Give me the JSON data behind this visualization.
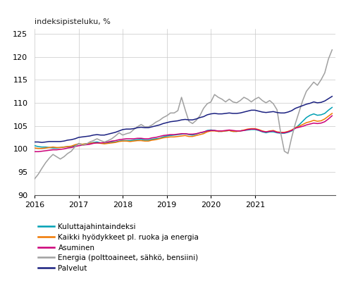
{
  "title": "indeksipisteluku, %",
  "ylim": [
    90,
    126
  ],
  "yticks": [
    90,
    95,
    100,
    105,
    110,
    115,
    120,
    125
  ],
  "background_color": "#ffffff",
  "grid_color": "#c8c8c8",
  "legend": [
    {
      "label": "Kuluttajahintaindeksi",
      "color": "#00a0b4"
    },
    {
      "label": "Kaikki hyödykkeet pl. ruoka ja energia",
      "color": "#f07800"
    },
    {
      "label": "Asuminen",
      "color": "#cc0078"
    },
    {
      "label": "Energia (polttoaineet, sähkö, bensiini)",
      "color": "#a0a0a0"
    },
    {
      "label": "Palvelut",
      "color": "#1a2080"
    }
  ],
  "x_labels": [
    "2016",
    "2017",
    "2018",
    "2019",
    "2020",
    "2021"
  ],
  "kuluttajahintaindeksi": [
    100.7,
    100.5,
    100.4,
    100.4,
    100.3,
    100.2,
    100.2,
    100.3,
    100.4,
    100.5,
    100.5,
    100.7,
    101.1,
    101.0,
    101.1,
    101.2,
    101.4,
    101.5,
    101.3,
    101.2,
    101.3,
    101.5,
    101.5,
    101.7,
    101.8,
    101.8,
    101.8,
    101.9,
    102.0,
    102.1,
    101.9,
    101.9,
    102.1,
    102.2,
    102.3,
    102.6,
    102.8,
    102.9,
    103.0,
    103.1,
    103.2,
    103.3,
    103.1,
    103.0,
    103.2,
    103.5,
    103.6,
    104.0,
    104.1,
    104.0,
    103.8,
    103.8,
    103.9,
    104.0,
    103.8,
    103.8,
    103.9,
    104.0,
    104.1,
    104.2,
    104.2,
    104.0,
    103.7,
    103.5,
    103.7,
    103.7,
    103.5,
    103.4,
    103.4,
    103.6,
    103.9,
    104.5,
    105.2,
    106.0,
    106.8,
    107.3,
    107.6,
    107.3,
    107.4,
    107.7,
    108.4,
    109.0
  ],
  "kaikki_pl_ruoka_energia": [
    100.2,
    100.1,
    100.1,
    100.2,
    100.3,
    100.4,
    100.3,
    100.3,
    100.4,
    100.5,
    100.6,
    100.9,
    101.1,
    101.0,
    101.1,
    101.2,
    101.3,
    101.3,
    101.2,
    101.1,
    101.2,
    101.3,
    101.4,
    101.6,
    101.7,
    101.7,
    101.6,
    101.7,
    101.8,
    101.8,
    101.7,
    101.7,
    101.9,
    102.0,
    102.2,
    102.4,
    102.5,
    102.6,
    102.6,
    102.7,
    102.8,
    102.9,
    102.7,
    102.7,
    102.9,
    103.1,
    103.3,
    103.7,
    103.9,
    103.9,
    103.8,
    103.8,
    103.9,
    104.0,
    103.8,
    103.8,
    103.9,
    104.1,
    104.3,
    104.4,
    104.4,
    104.2,
    103.9,
    103.7,
    103.9,
    104.0,
    103.7,
    103.6,
    103.6,
    103.8,
    104.1,
    104.6,
    104.9,
    105.3,
    105.7,
    105.9,
    106.2,
    106.0,
    106.1,
    106.5,
    107.1,
    107.7
  ],
  "asuminen": [
    99.4,
    99.4,
    99.5,
    99.6,
    99.7,
    99.8,
    99.8,
    99.9,
    100.0,
    100.2,
    100.3,
    100.5,
    100.7,
    100.8,
    100.9,
    101.0,
    101.2,
    101.3,
    101.3,
    101.4,
    101.5,
    101.7,
    101.8,
    102.0,
    102.1,
    102.2,
    102.2,
    102.2,
    102.3,
    102.3,
    102.2,
    102.2,
    102.4,
    102.5,
    102.7,
    102.9,
    103.0,
    103.1,
    103.1,
    103.2,
    103.3,
    103.3,
    103.2,
    103.2,
    103.3,
    103.5,
    103.7,
    103.9,
    104.0,
    104.0,
    103.9,
    103.9,
    104.0,
    104.1,
    104.0,
    103.9,
    103.9,
    104.0,
    104.2,
    104.3,
    104.3,
    104.1,
    103.8,
    103.7,
    103.8,
    103.9,
    103.6,
    103.5,
    103.5,
    103.7,
    104.0,
    104.5,
    104.7,
    104.9,
    105.2,
    105.4,
    105.6,
    105.5,
    105.6,
    105.9,
    106.5,
    107.2
  ],
  "energia": [
    93.5,
    94.5,
    95.8,
    97.0,
    98.0,
    98.8,
    98.3,
    97.8,
    98.3,
    99.0,
    99.5,
    100.5,
    101.2,
    100.8,
    101.0,
    101.5,
    101.8,
    102.2,
    101.8,
    101.5,
    101.8,
    102.2,
    102.8,
    103.5,
    103.0,
    103.3,
    103.5,
    104.2,
    104.8,
    105.3,
    104.8,
    104.8,
    105.2,
    105.8,
    106.2,
    106.8,
    107.2,
    107.8,
    107.8,
    108.3,
    111.2,
    108.5,
    106.0,
    105.5,
    106.2,
    107.2,
    108.8,
    109.8,
    110.2,
    111.8,
    111.2,
    110.8,
    110.2,
    110.8,
    110.2,
    110.0,
    110.5,
    111.2,
    110.8,
    110.2,
    110.8,
    111.2,
    110.5,
    110.0,
    110.5,
    109.8,
    108.5,
    103.5,
    99.5,
    99.0,
    102.5,
    105.5,
    108.0,
    110.5,
    112.5,
    113.5,
    114.5,
    113.8,
    115.0,
    116.5,
    119.5,
    121.5
  ],
  "palvelut": [
    101.5,
    101.5,
    101.4,
    101.5,
    101.6,
    101.6,
    101.6,
    101.6,
    101.7,
    101.9,
    102.0,
    102.2,
    102.5,
    102.6,
    102.7,
    102.8,
    103.0,
    103.1,
    103.0,
    103.0,
    103.2,
    103.4,
    103.6,
    103.9,
    104.2,
    104.3,
    104.3,
    104.4,
    104.6,
    104.7,
    104.6,
    104.6,
    104.8,
    105.0,
    105.2,
    105.5,
    105.7,
    105.9,
    106.0,
    106.1,
    106.3,
    106.4,
    106.3,
    106.3,
    106.5,
    106.8,
    107.0,
    107.4,
    107.6,
    107.7,
    107.6,
    107.6,
    107.7,
    107.8,
    107.7,
    107.7,
    107.8,
    108.0,
    108.2,
    108.4,
    108.4,
    108.2,
    108.0,
    107.9,
    108.0,
    108.1,
    107.9,
    107.8,
    107.8,
    108.0,
    108.3,
    108.8,
    109.1,
    109.4,
    109.7,
    109.9,
    110.2,
    110.0,
    110.1,
    110.4,
    110.9,
    111.4
  ],
  "n_months": 82
}
